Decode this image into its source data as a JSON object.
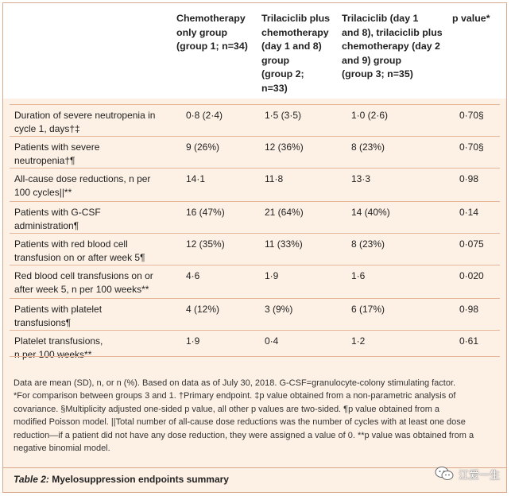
{
  "table": {
    "headers": [
      "Chemotherapy only group (group 1; n=34)",
      "Trilaciclib plus chemotherapy (day 1 and 8) group (group 2; n=33)",
      "Trilaciclib (day 1 and 8), trilaciclib plus chemotherapy (day 2 and 9) group (group 3; n=35)",
      "p value*"
    ],
    "header_lines": [
      [
        "Chemotherapy",
        "only group",
        "(group 1; n=34)"
      ],
      [
        "Trilaciclib plus",
        "chemotherapy",
        "(day 1 and 8)",
        "group",
        "(group 2;",
        "n=33)"
      ],
      [
        "Trilaciclib (day 1",
        "and 8), trilaciclib plus",
        "chemotherapy (day 2",
        "and 9) group",
        "(group 3; n=35)"
      ],
      [
        "p value*"
      ]
    ],
    "rows": [
      {
        "label": [
          "Duration of severe neutropenia in",
          "cycle 1, days†‡"
        ],
        "g1": "0·8 (2·4)",
        "g2": "1·5 (3·5)",
        "g3": "1·0 (2·6)",
        "p": "0·70§"
      },
      {
        "label": [
          "Patients with severe",
          "neutropenia†¶"
        ],
        "g1": "9 (26%)",
        "g2": "12 (36%)",
        "g3": "8 (23%)",
        "p": "0·70§"
      },
      {
        "label": [
          "All-cause dose reductions, n per",
          "100 cycles||**"
        ],
        "g1": "14·1",
        "g2": "11·8",
        "g3": "13·3",
        "p": "0·98"
      },
      {
        "label": [
          "Patients with G-CSF",
          "administration¶"
        ],
        "g1": "16 (47%)",
        "g2": "21 (64%)",
        "g3": "14 (40%)",
        "p": "0·14"
      },
      {
        "label": [
          "Patients with red blood cell",
          "transfusion on or after week 5¶"
        ],
        "g1": "12 (35%)",
        "g2": "11 (33%)",
        "g3": "8 (23%)",
        "p": "0·075"
      },
      {
        "label": [
          "Red blood cell transfusions on or",
          "after week 5, n per 100 weeks**"
        ],
        "g1": "4·6",
        "g2": "1·9",
        "g3": "1·6",
        "p": "0·020"
      },
      {
        "label": [
          "Patients with platelet",
          "transfusions¶"
        ],
        "g1": "4 (12%)",
        "g2": "3 (9%)",
        "g3": "6 (17%)",
        "p": "0·98"
      },
      {
        "label": [
          "Platelet transfusions,",
          "n per 100 weeks**"
        ],
        "g1": "1·9",
        "g2": "0·4",
        "g3": "1·2",
        "p": "0·61"
      }
    ]
  },
  "notes": [
    "Data are mean (SD), n, or n (%). Based on data as of July 30, 2018. G-CSF=granulocyte-colony stimulating factor.",
    "*For comparison between groups 3 and 1. †Primary endpoint. ‡p value obtained from a non-parametric analysis of",
    "covariance. §Multiplicity adjusted one-sided p value, all other p values are two-sided. ¶p value obtained from a",
    "modified Poisson model. ||Total number of all-cause dose reductions was the number of cycles with at least one dose",
    "reduction—if a patient did not have any dose reduction, they were assigned a value of 0. **p value was obtained from a",
    "negative binomial model."
  ],
  "caption": {
    "label": "Table 2:",
    "title": "Myelosuppression endpoints summary"
  },
  "watermark": {
    "icon": "wechat-icon",
    "text": "江爱一生"
  }
}
